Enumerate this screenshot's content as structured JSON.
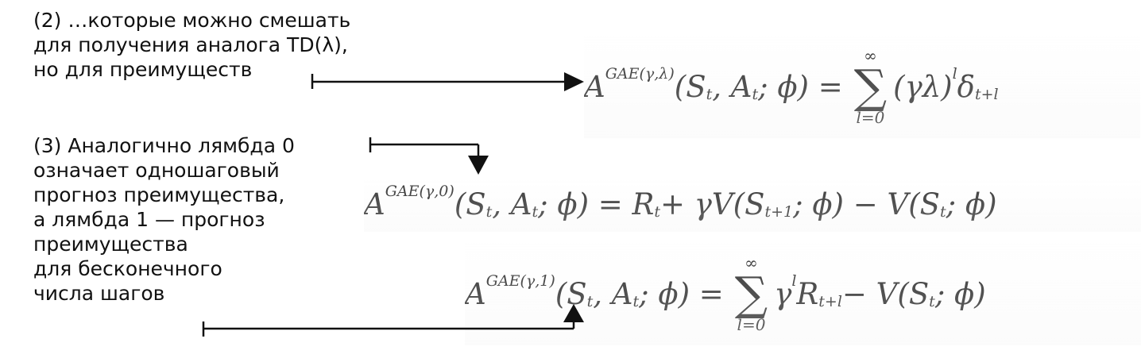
{
  "notes": {
    "note_2": {
      "lines": [
        "(2) …которые можно смешать",
        "для получения аналога TD(λ),",
        "но для преимуществ"
      ]
    },
    "note_3": {
      "lines": [
        "(3) Аналогично лямбда 0",
        "означает одношаговый",
        "прогноз преимущества,",
        "а лямбда 1 — прогноз",
        "преимущества",
        "для бесконечного",
        "числа шагов"
      ]
    }
  },
  "formulas": {
    "gae_lambda": {
      "lhs_base": "A",
      "lhs_sup": "GAE(γ,λ)",
      "lhs_args": "(S",
      "lhs_args_sub1": "t",
      "lhs_args_mid": ", A",
      "lhs_args_sub2": "t",
      "lhs_args_end": "; ϕ) =",
      "sum_upper": "∞",
      "sum_symbol": "∑",
      "sum_lower": "l=0",
      "term": "(γλ)",
      "term_sup": "l",
      "term_after": "δ",
      "term_sub": "t+l"
    },
    "gae_zero": {
      "lhs_base": "A",
      "lhs_sup": "GAE(γ,0)",
      "lhs_args": "(S",
      "lhs_args_sub1": "t",
      "lhs_args_mid": ", A",
      "lhs_args_sub2": "t",
      "lhs_args_end": "; ϕ) = R",
      "r_sub": "t",
      "mid": " + γV(S",
      "mid_sub": "t+1",
      "mid_end": "; ϕ) − V(S",
      "end_sub": "t",
      "end": "; ϕ)"
    },
    "gae_one": {
      "lhs_base": "A",
      "lhs_sup": "GAE(γ,1)",
      "lhs_args": "(S",
      "lhs_args_sub1": "t",
      "lhs_args_mid": ", A",
      "lhs_args_sub2": "t",
      "lhs_args_end": "; ϕ) =",
      "sum_upper": "∞",
      "sum_symbol": "∑",
      "sum_lower": "l=0",
      "term": "γ",
      "term_sup": "l",
      "term_after": "R",
      "term_sub": "t+l",
      "tail": " − V(S",
      "tail_sub": "t",
      "tail_end": "; ϕ)"
    }
  },
  "colors": {
    "text": "#111111",
    "formula": "#3a3a3a",
    "arrow": "#111111"
  }
}
